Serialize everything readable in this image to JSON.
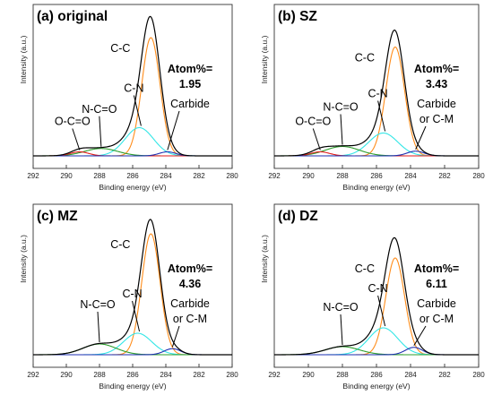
{
  "colors": {
    "envelope": "#000000",
    "C-C": "#ff8c1a",
    "C-N": "#33e6e6",
    "N-C=O": "#2e9e2e",
    "O-C=O": "#e01b1b",
    "Carbide": "#1f2fb0"
  },
  "chart_data": [
    {
      "type": "line",
      "title": "(a) original",
      "xlabel": "Binding energy (eV)",
      "ylabel": "Intensity (a.u.)",
      "xlim": [
        292,
        280
      ],
      "x_reversed": true,
      "xticks": [
        "292",
        "290",
        "288",
        "286",
        "284",
        "282",
        "280"
      ],
      "grid": false,
      "legend": "none",
      "annotations": {
        "atom_label": "Atom%=",
        "atom_value": "1.95",
        "carbide_line1": "Carbide",
        "carbide_line2": "",
        "cc": "C-C",
        "cn": "C-N",
        "nco": "N-C=O",
        "oco": "O-C=O"
      },
      "series": [
        {
          "name": "C-C",
          "center": 284.9,
          "height": 0.88
        },
        {
          "name": "C-N",
          "center": 285.6,
          "height": 0.21
        },
        {
          "name": "N-C=O",
          "center": 287.9,
          "height": 0.055
        },
        {
          "name": "O-C=O",
          "center": 289.2,
          "height": 0.03
        },
        {
          "name": "Carbide",
          "center": 283.9,
          "height": 0.03
        }
      ]
    },
    {
      "type": "line",
      "title": "(b) SZ",
      "xlabel": "Binding energy (eV)",
      "ylabel": "Intensity (a.u.)",
      "xlim": [
        292,
        280
      ],
      "x_reversed": true,
      "xticks": [
        "292",
        "290",
        "288",
        "286",
        "284",
        "282",
        "280"
      ],
      "grid": false,
      "legend": "none",
      "annotations": {
        "atom_label": "Atom%=",
        "atom_value": "3.43",
        "carbide_line1": "Carbide",
        "carbide_line2": "or C-M",
        "cc": "C-C",
        "cn": "C-N",
        "nco": "N-C=O",
        "oco": "O-C=O"
      },
      "series": [
        {
          "name": "C-C",
          "center": 284.9,
          "height": 0.81
        },
        {
          "name": "C-N",
          "center": 285.6,
          "height": 0.17
        },
        {
          "name": "N-C=O",
          "center": 288.0,
          "height": 0.07
        },
        {
          "name": "O-C=O",
          "center": 289.3,
          "height": 0.03
        },
        {
          "name": "Carbide",
          "center": 283.7,
          "height": 0.035
        }
      ]
    },
    {
      "type": "line",
      "title": "(c) MZ",
      "xlabel": "Binding energy (eV)",
      "ylabel": "Intensity (a.u.)",
      "xlim": [
        292,
        280
      ],
      "x_reversed": true,
      "xticks": [
        "292",
        "290",
        "288",
        "286",
        "284",
        "282",
        "280"
      ],
      "grid": false,
      "legend": "none",
      "annotations": {
        "atom_label": "Atom%=",
        "atom_value": "4.36",
        "carbide_line1": "Carbide",
        "carbide_line2": "or C-M",
        "cc": "C-C",
        "cn": "C-N",
        "nco": "N-C=O",
        "oco": ""
      },
      "series": [
        {
          "name": "C-C",
          "center": 284.9,
          "height": 0.9
        },
        {
          "name": "C-N",
          "center": 285.7,
          "height": 0.16
        },
        {
          "name": "N-C=O",
          "center": 288.0,
          "height": 0.08
        },
        {
          "name": "Carbide",
          "center": 283.6,
          "height": 0.045
        }
      ]
    },
    {
      "type": "line",
      "title": "(d) DZ",
      "xlabel": "Binding energy (eV)",
      "ylabel": "Intensity (a.u.)",
      "xlim": [
        292,
        280
      ],
      "x_reversed": true,
      "xticks": [
        "292",
        "290",
        "288",
        "286",
        "284",
        "282",
        "280"
      ],
      "grid": false,
      "legend": "none",
      "annotations": {
        "atom_label": "Atom%=",
        "atom_value": "6.11",
        "carbide_line1": "Carbide",
        "carbide_line2": "or C-M",
        "cc": "C-C",
        "cn": "C-N",
        "nco": "N-C=O",
        "oco": ""
      },
      "series": [
        {
          "name": "C-C",
          "center": 284.9,
          "height": 0.72
        },
        {
          "name": "C-N",
          "center": 285.6,
          "height": 0.2
        },
        {
          "name": "N-C=O",
          "center": 288.0,
          "height": 0.06
        },
        {
          "name": "Carbide",
          "center": 283.8,
          "height": 0.055
        }
      ]
    }
  ]
}
